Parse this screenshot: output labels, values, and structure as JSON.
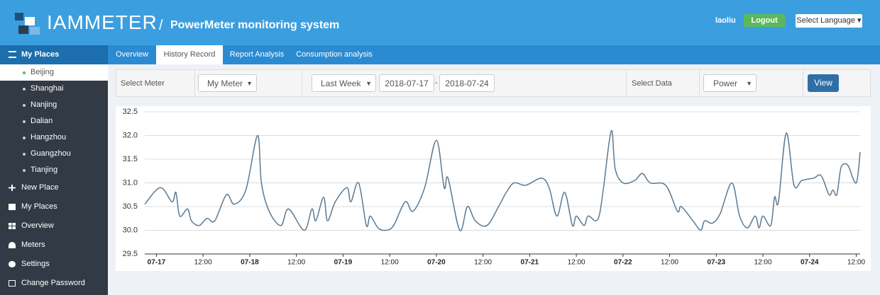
{
  "header": {
    "logo": "IAMMETER",
    "separator": "/",
    "title": "PowerMeter monitoring system",
    "user": "laoliu",
    "logout": "Logout",
    "language": "Select Language"
  },
  "sidebar": {
    "heading": "My Places",
    "places": [
      "Beijing",
      "Shanghai",
      "Nanjing",
      "Dalian",
      "Hangzhou",
      "Guangzhou",
      "Tianjing"
    ],
    "menu": [
      "New Place",
      "My Places",
      "Overview",
      "Meters",
      "Settings",
      "Change Password"
    ]
  },
  "tabs": [
    "Overview",
    "History Record",
    "Report Analysis",
    "Consumption analysis"
  ],
  "filters": {
    "select_meter_label": "Select Meter",
    "meter": "My Meter",
    "range": "Last Week",
    "start": "2018-07-17",
    "separator": "-",
    "end": "2018-07-24",
    "select_data_label": "Select Data",
    "data": "Power",
    "button": "View"
  },
  "chart_data": {
    "type": "line",
    "color": "#5b7a93",
    "grid": true,
    "x": [
      "07-16 21:00",
      "07-17 01:00",
      "07-17 04:00",
      "07-17 05:00",
      "07-17 06:00",
      "07-17 08:00",
      "07-17 09:00",
      "07-17 11:00",
      "07-17 13:00",
      "07-17 15:00",
      "07-17 18:00",
      "07-17 20:00",
      "07-17 23:00",
      "07-18 02:00",
      "07-18 03:00",
      "07-18 05:00",
      "07-18 08:00",
      "07-18 10:00",
      "07-18 14:00",
      "07-18 16:00",
      "07-18 17:00",
      "07-18 19:00",
      "07-18 20:00",
      "07-18 22:00",
      "07-19 01:00",
      "07-19 02:00",
      "07-19 04:00",
      "07-19 06:00",
      "07-19 07:00",
      "07-19 09:00",
      "07-19 11:00",
      "07-19 13:00",
      "07-19 16:00",
      "07-19 18:00",
      "07-19 21:00",
      "07-20 00:00",
      "07-20 02:00",
      "07-20 03:00",
      "07-20 06:00",
      "07-20 08:00",
      "07-20 10:00",
      "07-20 13:00",
      "07-20 16:00",
      "07-20 18:00",
      "07-20 20:00",
      "07-20 23:00",
      "07-21 03:00",
      "07-21 05:00",
      "07-21 07:00",
      "07-21 09:00",
      "07-21 11:00",
      "07-21 12:00",
      "07-21 14:00",
      "07-21 15:00",
      "07-21 17:00",
      "07-21 18:00",
      "07-21 19:00",
      "07-21 21:00",
      "07-21 22:00",
      "07-22 00:00",
      "07-22 03:00",
      "07-22 05:00",
      "07-22 07:00",
      "07-22 11:00",
      "07-22 14:00",
      "07-22 15:00",
      "07-22 18:00",
      "07-22 20:00",
      "07-22 21:00",
      "07-22 23:00",
      "07-23 01:00",
      "07-23 04:00",
      "07-23 06:00",
      "07-23 08:00",
      "07-23 10:00",
      "07-23 11:00",
      "07-23 12:00",
      "07-23 14:00",
      "07-23 15:00",
      "07-23 16:00",
      "07-23 18:00",
      "07-23 20:00",
      "07-23 22:00",
      "07-24 01:00",
      "07-24 03:00",
      "07-24 05:00",
      "07-24 06:00",
      "07-24 07:00",
      "07-24 08:00",
      "07-24 09:00",
      "07-24 10:00",
      "07-24 12:00",
      "07-24 13:00"
    ],
    "values": [
      30.55,
      30.9,
      30.6,
      30.8,
      30.3,
      30.45,
      30.2,
      30.1,
      30.25,
      30.2,
      30.75,
      30.55,
      30.85,
      32.0,
      31.0,
      30.4,
      30.1,
      30.45,
      30.0,
      30.45,
      30.2,
      30.7,
      30.2,
      30.6,
      30.9,
      30.6,
      31.0,
      30.1,
      30.3,
      30.05,
      30.0,
      30.1,
      30.6,
      30.4,
      30.9,
      31.9,
      30.9,
      31.1,
      30.0,
      30.5,
      30.2,
      30.1,
      30.5,
      30.8,
      31.0,
      30.95,
      31.1,
      30.9,
      30.3,
      30.8,
      30.1,
      30.3,
      30.1,
      30.3,
      30.2,
      30.35,
      30.9,
      32.1,
      31.3,
      31.0,
      31.05,
      31.2,
      31.0,
      30.95,
      30.4,
      30.5,
      30.2,
      30.0,
      30.2,
      30.15,
      30.35,
      31.0,
      30.3,
      30.05,
      30.3,
      30.05,
      30.3,
      30.1,
      30.7,
      30.6,
      32.05,
      30.95,
      31.05,
      31.1,
      31.15,
      30.75,
      30.85,
      30.75,
      31.3,
      31.4,
      31.35,
      31.0,
      31.65
    ],
    "xlim": [
      "07-16 21:00",
      "07-24 13:00"
    ],
    "xticks": [
      {
        "value": "07-17 00:00",
        "label": "07-17"
      },
      {
        "value": "07-17 12:00",
        "label": "12:00"
      },
      {
        "value": "07-18 00:00",
        "label": "07-18"
      },
      {
        "value": "07-18 12:00",
        "label": "12:00"
      },
      {
        "value": "07-19 00:00",
        "label": "07-19"
      },
      {
        "value": "07-19 12:00",
        "label": "12:00"
      },
      {
        "value": "07-20 00:00",
        "label": "07-20"
      },
      {
        "value": "07-20 12:00",
        "label": "12:00"
      },
      {
        "value": "07-21 00:00",
        "label": "07-21"
      },
      {
        "value": "07-21 12:00",
        "label": "12:00"
      },
      {
        "value": "07-22 00:00",
        "label": "07-22"
      },
      {
        "value": "07-22 12:00",
        "label": "12:00"
      },
      {
        "value": "07-23 00:00",
        "label": "07-23"
      },
      {
        "value": "07-23 12:00",
        "label": "12:00"
      },
      {
        "value": "07-24 00:00",
        "label": "07-24"
      },
      {
        "value": "07-24 12:00",
        "label": "12:00"
      }
    ],
    "ylim": [
      29.5,
      32.5
    ],
    "yticks": [
      29.5,
      {
        "value": 30,
        "label": "30.0"
      },
      30.5,
      {
        "value": 31,
        "label": "31.0"
      },
      31.5,
      {
        "value": 32,
        "label": "32.0"
      },
      32.5
    ]
  }
}
